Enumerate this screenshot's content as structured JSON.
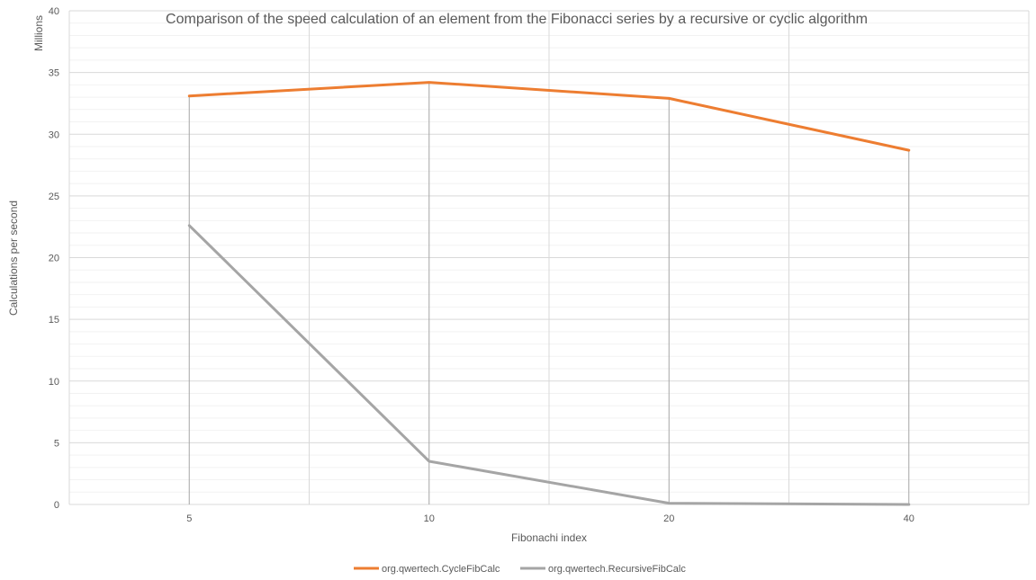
{
  "chart_data": {
    "type": "line",
    "title": "Comparison of the speed calculation of an element from the Fibonacci series by a recursive or cyclic algorithm",
    "xlabel": "Fibonachi index",
    "ylabel": "Calculations per second",
    "yunit": "Millions",
    "categories": [
      "5",
      "10",
      "20",
      "40"
    ],
    "ylim": [
      0,
      40
    ],
    "yticks": [
      0,
      5,
      10,
      15,
      20,
      25,
      30,
      35,
      40
    ],
    "grid": true,
    "legend": "bottom",
    "series": [
      {
        "name": "org.qwertech.CycleFibCalc",
        "color": "#ED7D31",
        "values": [
          33.1,
          34.2,
          32.9,
          28.7
        ]
      },
      {
        "name": "org.qwertech.RecursiveFibCalc",
        "color": "#A5A5A5",
        "values": [
          22.6,
          3.5,
          0.1,
          0.0
        ]
      }
    ]
  }
}
